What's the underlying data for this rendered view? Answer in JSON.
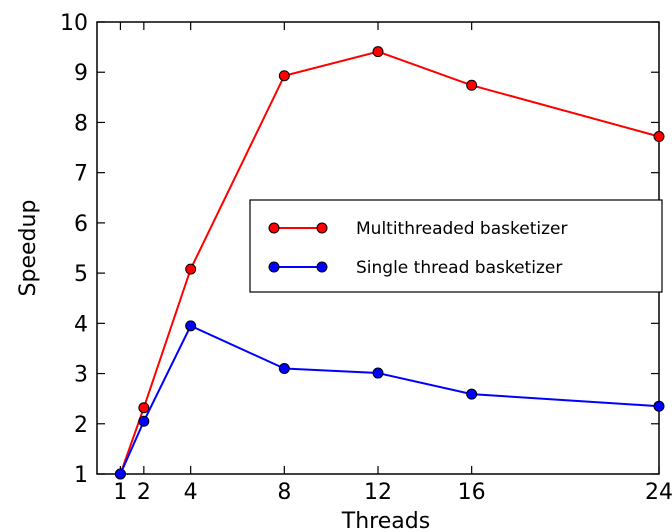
{
  "chart_data": {
    "type": "line",
    "xlabel": "Threads",
    "ylabel": "Speedup",
    "xlim": [
      0,
      24
    ],
    "ylim": [
      1,
      10
    ],
    "xticks": [
      1,
      2,
      4,
      8,
      12,
      16,
      24
    ],
    "yticks": [
      1,
      2,
      3,
      4,
      5,
      6,
      7,
      8,
      9,
      10
    ],
    "grid": false,
    "legend_position": "center-right",
    "series": [
      {
        "name": "Multithreaded basketizer",
        "color": "#ff0000",
        "marker": "circle",
        "x": [
          1,
          2,
          4,
          8,
          12,
          16,
          24
        ],
        "y": [
          1.0,
          2.32,
          5.08,
          8.93,
          9.41,
          8.74,
          7.72
        ]
      },
      {
        "name": "Single thread basketizer",
        "color": "#0000ff",
        "marker": "circle",
        "x": [
          1,
          2,
          4,
          8,
          12,
          16,
          24
        ],
        "y": [
          1.0,
          2.05,
          3.95,
          3.1,
          3.01,
          2.59,
          2.35
        ]
      }
    ]
  }
}
